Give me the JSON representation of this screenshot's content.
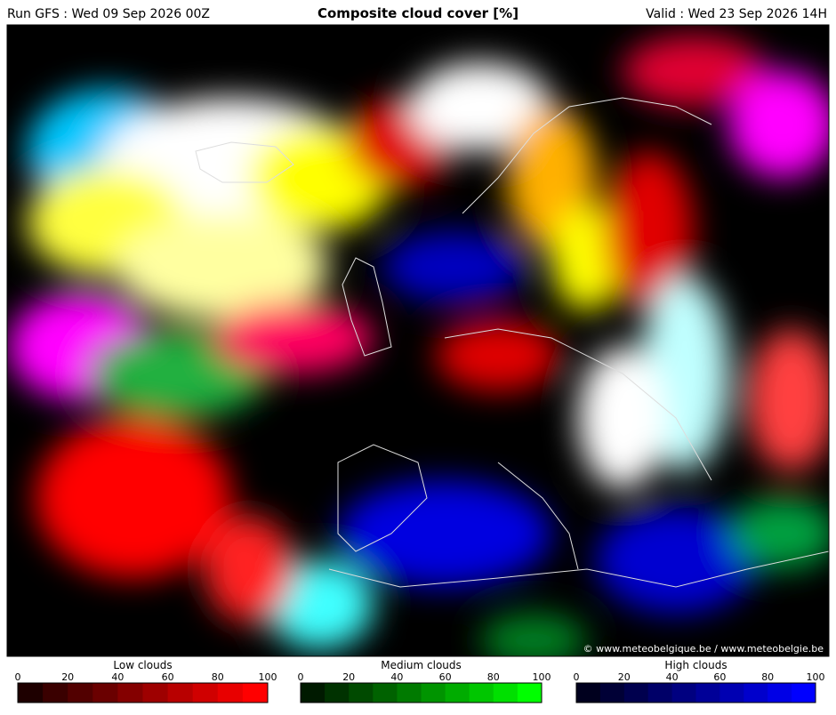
{
  "header": {
    "run": "Run GFS : Wed 09 Sep 2026 00Z",
    "title": "Composite cloud cover [%]",
    "valid": "Valid : Wed 23 Sep 2026 14H"
  },
  "credit": "© www.meteobelgique.be / www.meteobelgie.be",
  "legends": [
    {
      "title": "Low clouds",
      "ticks": [
        0,
        20,
        40,
        60,
        80,
        100
      ],
      "colors": [
        "#1e0000",
        "#3a0000",
        "#520000",
        "#6a0000",
        "#840000",
        "#9e0000",
        "#b80000",
        "#d00000",
        "#e80000",
        "#ff0000"
      ]
    },
    {
      "title": "Medium clouds",
      "ticks": [
        0,
        20,
        40,
        60,
        80,
        100
      ],
      "colors": [
        "#001a00",
        "#003200",
        "#004a00",
        "#006200",
        "#007a00",
        "#009400",
        "#00ac00",
        "#00c600",
        "#00e000",
        "#00ff00"
      ]
    },
    {
      "title": "High clouds",
      "ticks": [
        0,
        20,
        40,
        60,
        80,
        100
      ],
      "colors": [
        "#00001e",
        "#000036",
        "#00004e",
        "#000068",
        "#000080",
        "#000098",
        "#0000b2",
        "#0000cc",
        "#0000e6",
        "#0000ff"
      ]
    }
  ]
}
